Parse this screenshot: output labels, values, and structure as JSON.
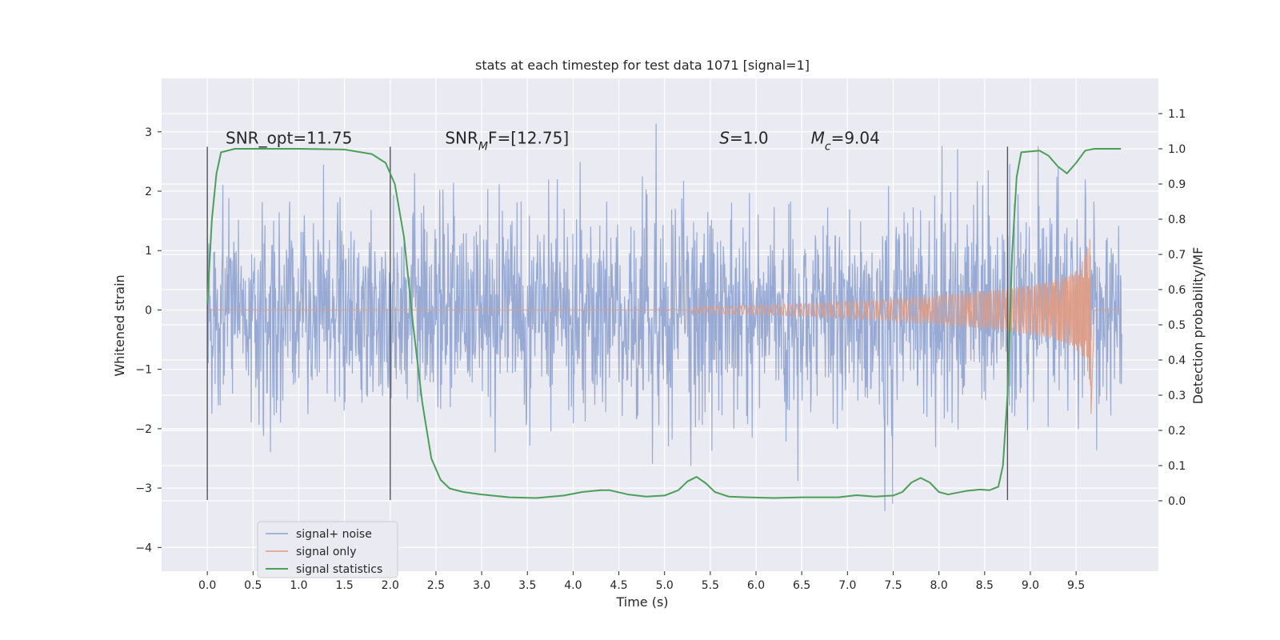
{
  "chart_data": {
    "type": "line",
    "title": "stats at each timestep for test data 1071 [signal=1]",
    "xlabel": "Time (s)",
    "ylabel": "Whitened strain",
    "ylabel_right": "Detection probability/MF",
    "xlim": [
      -0.5,
      10.4
    ],
    "ylim": [
      -4.4,
      3.9
    ],
    "ylim_right": [
      -0.2,
      1.2
    ],
    "x_ticks": [
      0.0,
      0.5,
      1.0,
      1.5,
      2.0,
      2.5,
      3.0,
      3.5,
      4.0,
      4.5,
      5.0,
      5.5,
      6.0,
      6.5,
      7.0,
      7.5,
      8.0,
      8.5,
      9.0,
      9.5
    ],
    "x_tick_labels": [
      "0.0",
      "0.5",
      "1.0",
      "1.5",
      "2.0",
      "2.5",
      "3.0",
      "3.5",
      "4.0",
      "4.5",
      "5.0",
      "5.5",
      "6.0",
      "6.5",
      "7.0",
      "7.5",
      "8.0",
      "8.5",
      "9.0",
      "9.5"
    ],
    "y_ticks": [
      -4,
      -3,
      -2,
      -1,
      0,
      1,
      2,
      3
    ],
    "y_tick_labels": [
      "−4",
      "−3",
      "−2",
      "−1",
      "0",
      "1",
      "2",
      "3"
    ],
    "y_ticks_right": [
      0.0,
      0.1,
      0.2,
      0.3,
      0.4,
      0.5,
      0.6,
      0.7,
      0.8,
      0.9,
      1.0,
      1.1
    ],
    "y_tick_labels_right": [
      "0.0",
      "0.1",
      "0.2",
      "0.3",
      "0.4",
      "0.5",
      "0.6",
      "0.7",
      "0.8",
      "0.9",
      "1.0",
      "1.1"
    ],
    "grid": true,
    "legend_position": "lower-left",
    "annotations": [
      {
        "text": "SNR_opt=11.75",
        "x": 0.2,
        "y": 2.8
      },
      {
        "text_html": "SNR<tspan font-style=\"italic\" baseline-shift=\"sub\" font-size=\"14\">M</tspan>F=[12.75]",
        "x": 2.6,
        "y": 2.8
      },
      {
        "text_html": "<tspan font-style=\"italic\">S</tspan>=1.0",
        "x": 5.6,
        "y": 2.8
      },
      {
        "text_html": "<tspan font-style=\"italic\">M</tspan><tspan baseline-shift=\"sub\" font-size=\"14\" font-style=\"italic\">c</tspan>=9.04",
        "x": 6.6,
        "y": 2.8
      }
    ],
    "vertical_lines": [
      {
        "x": 0.0,
        "ymin": -3.2,
        "ymax": 2.75
      },
      {
        "x": 2.0,
        "ymin": -3.2,
        "ymax": 2.75
      },
      {
        "x": 8.75,
        "ymin": -3.2,
        "ymax": 2.75
      }
    ],
    "series": [
      {
        "name": "signal+ noise",
        "color": "#8fa3cf",
        "axis": "left",
        "x_range": [
          0.0,
          10.0
        ],
        "envelope_typical": 1.6,
        "envelope_peak": 3.5
      },
      {
        "name": "signal only",
        "color": "#e09b83",
        "axis": "left",
        "x_range": [
          0.0,
          10.0
        ],
        "chirp_start": 5.3,
        "merger_time": 9.66,
        "peak_amplitude": [
          1.3,
          -1.9
        ]
      },
      {
        "name": "signal statistics",
        "color": "#4c9f59",
        "axis": "right",
        "x": [
          0.0,
          0.05,
          0.1,
          0.15,
          0.3,
          0.5,
          1.0,
          1.5,
          1.8,
          1.95,
          2.05,
          2.15,
          2.25,
          2.35,
          2.45,
          2.55,
          2.65,
          2.8,
          3.0,
          3.3,
          3.6,
          3.9,
          4.1,
          4.3,
          4.4,
          4.6,
          4.8,
          5.0,
          5.15,
          5.25,
          5.35,
          5.45,
          5.55,
          5.7,
          5.9,
          6.2,
          6.5,
          6.9,
          7.1,
          7.3,
          7.5,
          7.6,
          7.7,
          7.8,
          7.9,
          8.0,
          8.1,
          8.3,
          8.45,
          8.55,
          8.65,
          8.7,
          8.75,
          8.8,
          8.85,
          8.9,
          9.1,
          9.2,
          9.3,
          9.4,
          9.5,
          9.6,
          9.7,
          9.8,
          9.99
        ],
        "values": [
          0.56,
          0.8,
          0.93,
          0.99,
          1.0,
          1.0,
          1.0,
          0.998,
          0.985,
          0.96,
          0.9,
          0.75,
          0.5,
          0.28,
          0.12,
          0.06,
          0.035,
          0.025,
          0.018,
          0.01,
          0.008,
          0.015,
          0.025,
          0.03,
          0.03,
          0.018,
          0.012,
          0.015,
          0.03,
          0.055,
          0.068,
          0.05,
          0.025,
          0.012,
          0.01,
          0.008,
          0.01,
          0.01,
          0.016,
          0.012,
          0.015,
          0.025,
          0.052,
          0.065,
          0.052,
          0.025,
          0.018,
          0.028,
          0.032,
          0.03,
          0.04,
          0.1,
          0.3,
          0.7,
          0.92,
          0.99,
          0.995,
          0.98,
          0.95,
          0.93,
          0.96,
          0.995,
          1.0,
          1.0,
          1.0
        ]
      }
    ]
  }
}
